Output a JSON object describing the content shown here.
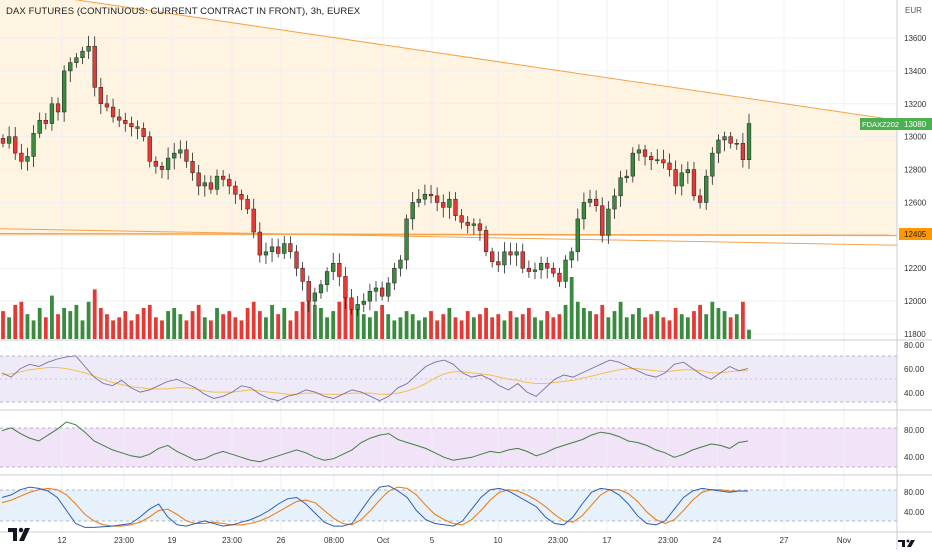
{
  "header": {
    "title": "DAX FUTURES (CONTINUOUS: CURRENT CONTRACT IN FRONT), 3h, EUREX",
    "currency": "EUR"
  },
  "price_axis": {
    "ticks": [
      "13600",
      "13400",
      "13200",
      "13000",
      "12800",
      "12600",
      "12400",
      "12200",
      "12000",
      "11800"
    ],
    "tick_values": [
      13600,
      13400,
      13200,
      13000,
      12800,
      12600,
      12400,
      12200,
      12000,
      11800
    ],
    "last_price_label": "13080",
    "symbol_label": "FDAXZ2022",
    "level_label": "12405"
  },
  "indicator_axes": {
    "rsi_ticks": [
      "80.00",
      "60.00",
      "40.00"
    ],
    "mid_ticks": [
      "80.00",
      "40.00"
    ],
    "stoch_ticks": [
      "80.00",
      "40.00"
    ]
  },
  "time_axis": {
    "labels": [
      "12",
      "23:00",
      "19",
      "23:00",
      "26",
      "08:00",
      "Oct",
      "5",
      "10",
      "23:00",
      "17",
      "23:00",
      "24",
      "27",
      "Nov"
    ]
  },
  "colors": {
    "up": "#3a8a3f",
    "down": "#e53935",
    "trendline": "#f5a24a",
    "channel_fill": "#fff4e2",
    "rsi_fill": "#efeaf7",
    "mid_fill": "#f1e4f8",
    "stoch_fill": "#e6f1fb",
    "symbol_badge": "#4caf50",
    "level_badge": "#ff9800"
  },
  "chart_data": [
    {
      "type": "candlestick",
      "title": "DAX FUTURES (CONTINUOUS: CURRENT CONTRACT IN FRONT), 3h, EUREX",
      "ylabel": "EUR",
      "ylim": [
        11750,
        13750
      ],
      "x": [
        "12",
        "23:00",
        "19",
        "23:00",
        "26",
        "08:00",
        "Oct",
        "5",
        "10",
        "23:00",
        "17",
        "23:00",
        "24",
        "27",
        "Nov"
      ],
      "close_series": [
        12960,
        13000,
        12900,
        12850,
        12880,
        13020,
        13100,
        13080,
        13200,
        13150,
        13400,
        13450,
        13480,
        13520,
        13550,
        13300,
        13200,
        13180,
        13120,
        13100,
        13080,
        13060,
        13050,
        13000,
        12850,
        12820,
        12800,
        12870,
        12900,
        12920,
        12850,
        12780,
        12700,
        12720,
        12680,
        12760,
        12740,
        12700,
        12650,
        12620,
        12560,
        12420,
        12280,
        12300,
        12330,
        12290,
        12350,
        12300,
        12200,
        12120,
        12000,
        12050,
        12100,
        12180,
        12230,
        12150,
        12020,
        11950,
        11980,
        12000,
        12060,
        12080,
        12030,
        12110,
        12200,
        12250,
        12500,
        12600,
        12620,
        12650,
        12640,
        12600,
        12570,
        12620,
        12520,
        12480,
        12460,
        12470,
        12430,
        12300,
        12240,
        12220,
        12300,
        12280,
        12300,
        12200,
        12180,
        12190,
        12230,
        12200,
        12170,
        12120,
        12250,
        12300,
        12500,
        12600,
        12620,
        12580,
        12400,
        12560,
        12640,
        12750,
        12760,
        12900,
        12920,
        12880,
        12860,
        12860,
        12840,
        12800,
        12700,
        12780,
        12800,
        12640,
        12600,
        12760,
        12900,
        12980,
        13000,
        12960,
        12960,
        12860,
        13080
      ],
      "volume_series": [
        0.45,
        0.35,
        0.55,
        0.6,
        0.4,
        0.3,
        0.5,
        0.35,
        0.7,
        0.4,
        0.5,
        0.45,
        0.55,
        0.3,
        0.6,
        0.8,
        0.5,
        0.4,
        0.3,
        0.35,
        0.45,
        0.3,
        0.4,
        0.5,
        0.55,
        0.35,
        0.3,
        0.45,
        0.5,
        0.4,
        0.3,
        0.45,
        0.55,
        0.35,
        0.3,
        0.5,
        0.4,
        0.45,
        0.35,
        0.3,
        0.5,
        0.6,
        0.45,
        0.35,
        0.55,
        0.4,
        0.5,
        0.3,
        0.45,
        0.6,
        0.85,
        0.55,
        0.5,
        0.35,
        0.45,
        0.6,
        0.75,
        0.55,
        0.5,
        0.4,
        0.35,
        0.45,
        0.55,
        0.4,
        0.3,
        0.35,
        0.45,
        0.4,
        0.3,
        0.35,
        0.45,
        0.3,
        0.4,
        0.5,
        0.35,
        0.3,
        0.45,
        0.35,
        0.4,
        0.5,
        0.35,
        0.4,
        0.3,
        0.45,
        0.35,
        0.4,
        0.5,
        0.35,
        0.3,
        0.45,
        0.35,
        0.4,
        0.55,
        1.0,
        0.6,
        0.5,
        0.45,
        0.4,
        0.55,
        0.35,
        0.45,
        0.6,
        0.35,
        0.4,
        0.5,
        0.35,
        0.4,
        0.45,
        0.35,
        0.3,
        0.5,
        0.4,
        0.35,
        0.45,
        0.55,
        0.4,
        0.6,
        0.5,
        0.45,
        0.35,
        0.4,
        0.6,
        0.15
      ],
      "trendlines": [
        {
          "from": [
            "start",
            13900
          ],
          "to": [
            "end",
            13100
          ]
        },
        {
          "from": [
            "start",
            12410
          ],
          "to": [
            "end",
            12400
          ]
        },
        {
          "from": [
            "start",
            12440
          ],
          "to": [
            "end",
            12340
          ]
        }
      ]
    },
    {
      "type": "line",
      "name": "rsi",
      "ylim": [
        30,
        90
      ],
      "bands": [
        80,
        40
      ],
      "series": [
        {
          "values": [
            62,
            58,
            66,
            70,
            68,
            72,
            75,
            77,
            78,
            68,
            58,
            52,
            50,
            55,
            48,
            44,
            46,
            50,
            54,
            56,
            52,
            48,
            42,
            38,
            40,
            44,
            50,
            48,
            42,
            38,
            36,
            40,
            42,
            46,
            44,
            40,
            38,
            42,
            46,
            44,
            40,
            36,
            40,
            48,
            52,
            60,
            68,
            72,
            74,
            70,
            62,
            58,
            60,
            56,
            50,
            46,
            52,
            44,
            40,
            48,
            56,
            60,
            58,
            62,
            66,
            70,
            74,
            72,
            68,
            64,
            60,
            58,
            62,
            70,
            72,
            66,
            60,
            56,
            62,
            68,
            64,
            66
          ]
        },
        {
          "values": [
            60,
            61,
            63,
            65,
            66,
            67,
            67,
            66,
            64,
            62,
            59,
            56,
            53,
            51,
            49,
            48,
            47,
            47,
            47,
            48,
            48,
            47,
            45,
            44,
            44,
            44,
            45,
            46,
            45,
            44,
            43,
            42,
            42,
            43,
            43,
            42,
            42,
            42,
            43,
            43,
            43,
            42,
            42,
            43,
            45,
            48,
            52,
            57,
            61,
            63,
            63,
            62,
            61,
            60,
            58,
            56,
            55,
            53,
            52,
            52,
            53,
            54,
            55,
            57,
            59,
            61,
            63,
            65,
            66,
            66,
            65,
            64,
            63,
            64,
            65,
            65,
            64,
            62,
            62,
            63,
            64,
            64
          ]
        }
      ]
    },
    {
      "type": "line",
      "name": "oscillator",
      "ylim": [
        20,
        100
      ],
      "bands": [
        80,
        40
      ],
      "series": [
        {
          "values": [
            76,
            80,
            72,
            66,
            62,
            70,
            78,
            88,
            84,
            74,
            62,
            56,
            50,
            46,
            42,
            40,
            44,
            52,
            56,
            48,
            42,
            36,
            38,
            44,
            48,
            44,
            40,
            36,
            34,
            38,
            42,
            46,
            50,
            46,
            40,
            36,
            38,
            44,
            50,
            60,
            66,
            70,
            72,
            64,
            60,
            56,
            52,
            46,
            40,
            36,
            38,
            40,
            44,
            48,
            46,
            50,
            52,
            48,
            42,
            46,
            52,
            56,
            60,
            64,
            70,
            74,
            72,
            68,
            62,
            60,
            56,
            50,
            46,
            40,
            44,
            50,
            54,
            58,
            56,
            52,
            60,
            62
          ]
        }
      ]
    },
    {
      "type": "line",
      "name": "stochastic",
      "ylim": [
        20,
        100
      ],
      "bands": [
        80,
        40
      ],
      "series": [
        {
          "values": [
            70,
            74,
            82,
            86,
            84,
            80,
            70,
            50,
            30,
            24,
            24,
            25,
            26,
            28,
            30,
            40,
            52,
            60,
            40,
            28,
            26,
            30,
            34,
            30,
            26,
            28,
            32,
            36,
            42,
            50,
            60,
            68,
            70,
            60,
            46,
            32,
            26,
            26,
            30,
            50,
            70,
            86,
            88,
            80,
            70,
            50,
            36,
            30,
            28,
            26,
            34,
            52,
            70,
            82,
            84,
            80,
            72,
            64,
            56,
            40,
            30,
            28,
            40,
            60,
            78,
            84,
            82,
            74,
            60,
            42,
            30,
            28,
            34,
            52,
            70,
            80,
            84,
            82,
            80,
            78,
            80,
            80
          ]
        },
        {
          "values": [
            62,
            66,
            72,
            78,
            82,
            84,
            82,
            74,
            60,
            44,
            34,
            28,
            26,
            26,
            28,
            32,
            40,
            50,
            52,
            44,
            34,
            30,
            30,
            32,
            30,
            28,
            28,
            30,
            34,
            40,
            48,
            56,
            64,
            66,
            62,
            50,
            38,
            30,
            28,
            36,
            50,
            66,
            80,
            86,
            84,
            74,
            58,
            44,
            36,
            30,
            28,
            36,
            50,
            66,
            78,
            82,
            80,
            74,
            66,
            56,
            44,
            34,
            32,
            42,
            58,
            74,
            82,
            82,
            76,
            64,
            48,
            36,
            30,
            36,
            50,
            66,
            78,
            82,
            82,
            80,
            80,
            80
          ]
        }
      ]
    }
  ]
}
